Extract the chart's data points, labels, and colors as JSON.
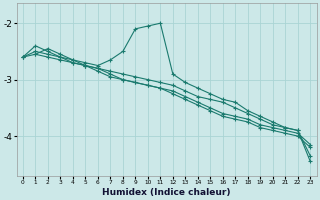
{
  "xlabel": "Humidex (Indice chaleur)",
  "bg_color": "#cce8e8",
  "grid_color": "#aad4d4",
  "line_color": "#1a7a6e",
  "xlim": [
    -0.5,
    23.5
  ],
  "ylim": [
    -4.7,
    -1.65
  ],
  "yticks": [
    -4,
    -3,
    -2
  ],
  "xticks": [
    0,
    1,
    2,
    3,
    4,
    5,
    6,
    7,
    8,
    9,
    10,
    11,
    12,
    13,
    14,
    15,
    16,
    17,
    18,
    19,
    20,
    21,
    22,
    23
  ],
  "series": [
    [
      null,
      -2.55,
      -2.45,
      -2.55,
      -2.65,
      -2.75,
      -2.8,
      -2.85,
      -2.9,
      -2.95,
      -3.0,
      -3.05,
      -3.1,
      -3.2,
      -3.3,
      -3.35,
      -3.4,
      -3.5,
      -3.6,
      -3.7,
      -3.8,
      -3.85,
      -3.9,
      -4.35
    ],
    [
      -2.6,
      -2.4,
      -2.5,
      -2.6,
      -2.65,
      -2.7,
      -2.75,
      -2.65,
      -2.5,
      -2.1,
      -2.05,
      -2.0,
      -2.9,
      -3.05,
      -3.15,
      -3.25,
      -3.35,
      -3.4,
      -3.55,
      -3.65,
      -3.75,
      -3.85,
      -3.9,
      -4.45
    ],
    [
      -2.6,
      -2.55,
      -2.6,
      -2.65,
      -2.7,
      -2.75,
      -2.85,
      -2.95,
      -3.0,
      -3.05,
      -3.1,
      -3.15,
      -3.2,
      -3.3,
      -3.4,
      -3.5,
      -3.6,
      -3.65,
      -3.7,
      -3.8,
      -3.85,
      -3.9,
      -3.95,
      -4.15
    ],
    [
      -2.6,
      -2.5,
      -2.55,
      -2.6,
      -2.7,
      -2.75,
      -2.8,
      -2.9,
      -3.0,
      -3.05,
      -3.1,
      -3.15,
      -3.25,
      -3.35,
      -3.45,
      -3.55,
      -3.65,
      -3.7,
      -3.75,
      -3.85,
      -3.9,
      -3.95,
      -4.0,
      -4.2
    ]
  ]
}
